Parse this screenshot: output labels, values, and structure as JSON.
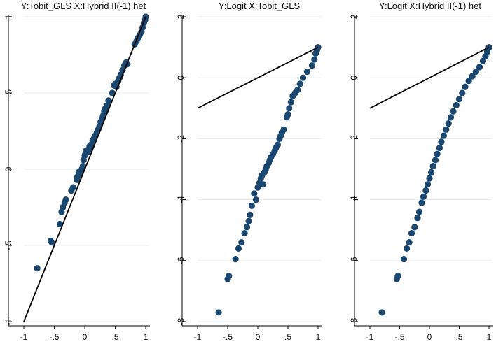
{
  "chart_data": [
    {
      "type": "scatter",
      "title": "Y:Tobit_GLS X:Hybrid II(-1) het",
      "xlabel": "",
      "ylabel": "",
      "xlim": [
        -1,
        1
      ],
      "ylim": [
        -1,
        1
      ],
      "xticks": [
        "-1",
        "-.5",
        "0",
        ".5",
        "1"
      ],
      "yticks": [
        "-1",
        "-.5",
        "0",
        ".5",
        "1"
      ],
      "grid": true,
      "marker_color": "#1a476f",
      "reference_line": {
        "from": [
          -1,
          -1
        ],
        "to": [
          1,
          1
        ]
      },
      "points": [
        [
          -0.78,
          -0.65
        ],
        [
          -0.56,
          -0.47
        ],
        [
          -0.54,
          -0.48
        ],
        [
          -0.41,
          -0.36
        ],
        [
          -0.38,
          -0.28
        ],
        [
          -0.36,
          -0.25
        ],
        [
          -0.33,
          -0.22
        ],
        [
          -0.31,
          -0.2
        ],
        [
          -0.22,
          -0.14
        ],
        [
          -0.19,
          -0.12
        ],
        [
          -0.13,
          -0.07
        ],
        [
          -0.12,
          -0.05
        ],
        [
          -0.1,
          -0.02
        ],
        [
          -0.09,
          -0.03
        ],
        [
          -0.06,
          -0.01
        ],
        [
          -0.05,
          0.0
        ],
        [
          -0.03,
          0.02
        ],
        [
          -0.02,
          0.06
        ],
        [
          0.0,
          0.09
        ],
        [
          0.01,
          0.1
        ],
        [
          0.02,
          0.12
        ],
        [
          0.04,
          0.11
        ],
        [
          0.06,
          0.13
        ],
        [
          0.07,
          0.13
        ],
        [
          0.08,
          0.15
        ],
        [
          0.1,
          0.16
        ],
        [
          0.12,
          0.16
        ],
        [
          0.13,
          0.19
        ],
        [
          0.15,
          0.2
        ],
        [
          0.17,
          0.22
        ],
        [
          0.2,
          0.24
        ],
        [
          0.22,
          0.26
        ],
        [
          0.24,
          0.28
        ],
        [
          0.26,
          0.31
        ],
        [
          0.28,
          0.33
        ],
        [
          0.3,
          0.35
        ],
        [
          0.32,
          0.38
        ],
        [
          0.34,
          0.4
        ],
        [
          0.37,
          0.42
        ],
        [
          0.39,
          0.45
        ],
        [
          0.45,
          0.5
        ],
        [
          0.48,
          0.55
        ],
        [
          0.5,
          0.56
        ],
        [
          0.52,
          0.54
        ],
        [
          0.55,
          0.58
        ],
        [
          0.57,
          0.6
        ],
        [
          0.59,
          0.62
        ],
        [
          0.62,
          0.65
        ],
        [
          0.65,
          0.68
        ],
        [
          0.68,
          0.7
        ],
        [
          0.7,
          0.69
        ],
        [
          0.82,
          0.82
        ],
        [
          0.85,
          0.84
        ],
        [
          0.87,
          0.86
        ],
        [
          0.9,
          0.88
        ],
        [
          0.93,
          0.9
        ],
        [
          0.95,
          0.93
        ],
        [
          0.97,
          0.96
        ],
        [
          0.99,
          0.98
        ],
        [
          1.0,
          1.0
        ]
      ]
    },
    {
      "type": "scatter",
      "title": "Y:Logit X:Tobit_GLS",
      "xlabel": "",
      "ylabel": "",
      "xlim": [
        -1,
        1
      ],
      "ylim": [
        -8,
        2
      ],
      "xticks": [
        "-1",
        "-.5",
        "0",
        ".5",
        "1"
      ],
      "yticks": [
        "-8",
        "-6",
        "-4",
        "-2",
        "0",
        "2"
      ],
      "grid": true,
      "marker_color": "#1a476f",
      "reference_line": {
        "from": [
          -1,
          -1
        ],
        "to": [
          1,
          1
        ]
      },
      "points": [
        [
          -0.65,
          -7.7
        ],
        [
          -0.5,
          -6.6
        ],
        [
          -0.48,
          -6.5
        ],
        [
          -0.37,
          -5.95
        ],
        [
          -0.32,
          -5.6
        ],
        [
          -0.27,
          -5.4
        ],
        [
          -0.22,
          -5.1
        ],
        [
          -0.18,
          -4.9
        ],
        [
          -0.15,
          -4.7
        ],
        [
          -0.13,
          -4.5
        ],
        [
          -0.1,
          -4.2
        ],
        [
          -0.06,
          -3.8
        ],
        [
          -0.03,
          -4.0
        ],
        [
          0.0,
          -3.6
        ],
        [
          0.03,
          -3.45
        ],
        [
          0.05,
          -3.3
        ],
        [
          0.07,
          -3.2
        ],
        [
          0.09,
          -3.5
        ],
        [
          0.11,
          -3.1
        ],
        [
          0.13,
          -3.0
        ],
        [
          0.15,
          -2.9
        ],
        [
          0.18,
          -2.8
        ],
        [
          0.2,
          -2.7
        ],
        [
          0.22,
          -2.6
        ],
        [
          0.25,
          -2.5
        ],
        [
          0.28,
          -2.4
        ],
        [
          0.3,
          -2.3
        ],
        [
          0.33,
          -2.2
        ],
        [
          0.36,
          -2.0
        ],
        [
          0.38,
          -1.9
        ],
        [
          0.4,
          -1.8
        ],
        [
          0.43,
          -1.7
        ],
        [
          0.48,
          -1.3
        ],
        [
          0.5,
          -1.2
        ],
        [
          0.52,
          -1.0
        ],
        [
          0.55,
          -0.8
        ],
        [
          0.58,
          -0.6
        ],
        [
          0.62,
          -0.5
        ],
        [
          0.66,
          -0.4
        ],
        [
          0.7,
          -0.2
        ],
        [
          0.75,
          0.0
        ],
        [
          0.82,
          0.2
        ],
        [
          0.9,
          0.4
        ],
        [
          0.94,
          0.6
        ],
        [
          0.96,
          0.8
        ],
        [
          0.98,
          0.9
        ],
        [
          1.0,
          1.0
        ]
      ]
    },
    {
      "type": "scatter",
      "title": "Y:Logit X:Hybrid II(-1) het",
      "xlabel": "",
      "ylabel": "",
      "xlim": [
        -1,
        1
      ],
      "ylim": [
        -8,
        2
      ],
      "xticks": [
        "-1",
        "-.5",
        "0",
        ".5",
        "1"
      ],
      "yticks": [
        "-8",
        "-6",
        "-4",
        "-2",
        "0",
        "2"
      ],
      "grid": true,
      "marker_color": "#1a476f",
      "reference_line": {
        "from": [
          -1,
          -1
        ],
        "to": [
          1,
          1
        ]
      },
      "points": [
        [
          -0.8,
          -7.7
        ],
        [
          -0.55,
          -6.6
        ],
        [
          -0.53,
          -6.5
        ],
        [
          -0.43,
          -5.95
        ],
        [
          -0.38,
          -5.6
        ],
        [
          -0.34,
          -5.4
        ],
        [
          -0.3,
          -5.1
        ],
        [
          -0.25,
          -4.9
        ],
        [
          -0.2,
          -4.6
        ],
        [
          -0.17,
          -4.4
        ],
        [
          -0.13,
          -4.1
        ],
        [
          -0.1,
          -3.9
        ],
        [
          -0.06,
          -3.7
        ],
        [
          -0.03,
          -3.5
        ],
        [
          0.0,
          -3.3
        ],
        [
          0.03,
          -3.1
        ],
        [
          0.06,
          -2.9
        ],
        [
          0.1,
          -2.7
        ],
        [
          0.13,
          -2.5
        ],
        [
          0.17,
          -2.3
        ],
        [
          0.2,
          -2.1
        ],
        [
          0.24,
          -1.9
        ],
        [
          0.28,
          -1.7
        ],
        [
          0.32,
          -1.5
        ],
        [
          0.36,
          -1.3
        ],
        [
          0.4,
          -1.1
        ],
        [
          0.45,
          -0.9
        ],
        [
          0.5,
          -0.7
        ],
        [
          0.55,
          -0.5
        ],
        [
          0.6,
          -0.3
        ],
        [
          0.66,
          -0.1
        ],
        [
          0.72,
          0.05
        ],
        [
          0.78,
          0.2
        ],
        [
          0.84,
          0.35
        ],
        [
          0.9,
          0.55
        ],
        [
          0.94,
          0.7
        ],
        [
          0.97,
          0.85
        ],
        [
          1.0,
          1.0
        ]
      ]
    }
  ]
}
